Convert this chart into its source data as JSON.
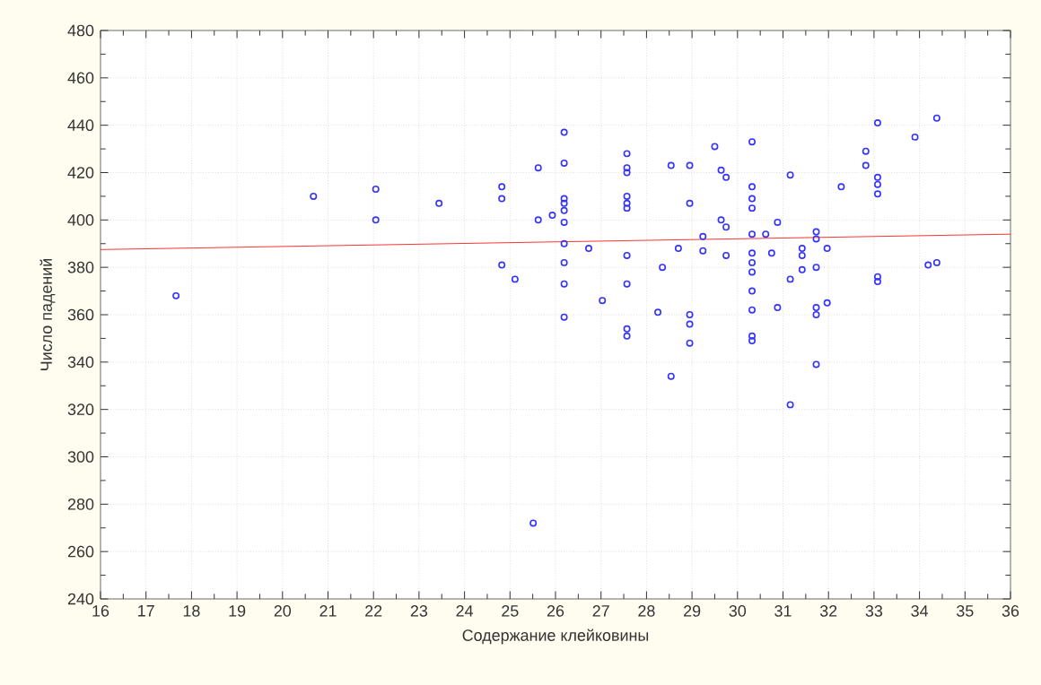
{
  "chart_data": {
    "type": "scatter",
    "xlabel": "Содержание клейковины",
    "ylabel": "Число падений",
    "xlim": [
      16,
      36
    ],
    "ylim": [
      240,
      480
    ],
    "xticks": [
      16,
      17,
      18,
      19,
      20,
      21,
      22,
      23,
      24,
      25,
      26,
      27,
      28,
      29,
      30,
      31,
      32,
      33,
      34,
      35,
      36
    ],
    "yticks": [
      240,
      260,
      280,
      300,
      320,
      340,
      360,
      380,
      400,
      420,
      440,
      460,
      480
    ],
    "grid": true,
    "marker": "circle",
    "series": [
      {
        "color": "#3333ff",
        "x": [
          17.66,
          20.68,
          22.05,
          22.05,
          23.44,
          24.82,
          24.82,
          24.82,
          25.11,
          25.51,
          25.62,
          25.62,
          25.93,
          26.19,
          26.19,
          26.19,
          26.19,
          26.19,
          26.19,
          26.19,
          26.19,
          26.19,
          26.19,
          26.73,
          27.03,
          27.57,
          27.57,
          27.57,
          27.57,
          27.57,
          27.57,
          27.57,
          27.57,
          27.57,
          27.57,
          28.25,
          28.35,
          28.54,
          28.54,
          28.7,
          28.95,
          28.95,
          28.95,
          28.95,
          28.95,
          29.24,
          29.24,
          29.5,
          29.64,
          29.64,
          29.75,
          29.75,
          29.75,
          30.32,
          30.32,
          30.32,
          30.32,
          30.32,
          30.32,
          30.32,
          30.32,
          30.32,
          30.32,
          30.32,
          30.32,
          30.62,
          30.75,
          30.88,
          30.88,
          31.16,
          31.16,
          31.16,
          31.42,
          31.42,
          31.42,
          31.73,
          31.73,
          31.73,
          31.73,
          31.73,
          31.73,
          31.97,
          31.97,
          32.28,
          32.82,
          32.82,
          33.08,
          33.08,
          33.08,
          33.08,
          33.08,
          33.08,
          33.9,
          34.19,
          34.38,
          34.38
        ],
        "values": [
          368,
          410,
          413,
          400,
          407,
          414,
          409,
          381,
          375,
          272,
          422,
          400,
          402,
          437,
          424,
          409,
          407,
          404,
          399,
          390,
          382,
          373,
          359,
          388,
          366,
          428,
          422,
          420,
          410,
          407,
          405,
          385,
          373,
          354,
          351,
          361,
          380,
          423,
          334,
          388,
          423,
          407,
          360,
          356,
          348,
          393,
          387,
          431,
          421,
          400,
          418,
          397,
          385,
          433,
          414,
          409,
          405,
          394,
          386,
          382,
          378,
          370,
          362,
          351,
          349,
          394,
          386,
          399,
          363,
          419,
          375,
          322,
          388,
          385,
          379,
          395,
          392,
          380,
          363,
          360,
          339,
          388,
          365,
          414,
          429,
          423,
          441,
          418,
          415,
          411,
          376,
          374,
          435,
          381,
          443,
          382
        ]
      },
      {
        "type": "line",
        "marker": "none",
        "color": "#ff0000",
        "x": [
          16,
          36
        ],
        "values": [
          387.5,
          394
        ]
      }
    ]
  }
}
